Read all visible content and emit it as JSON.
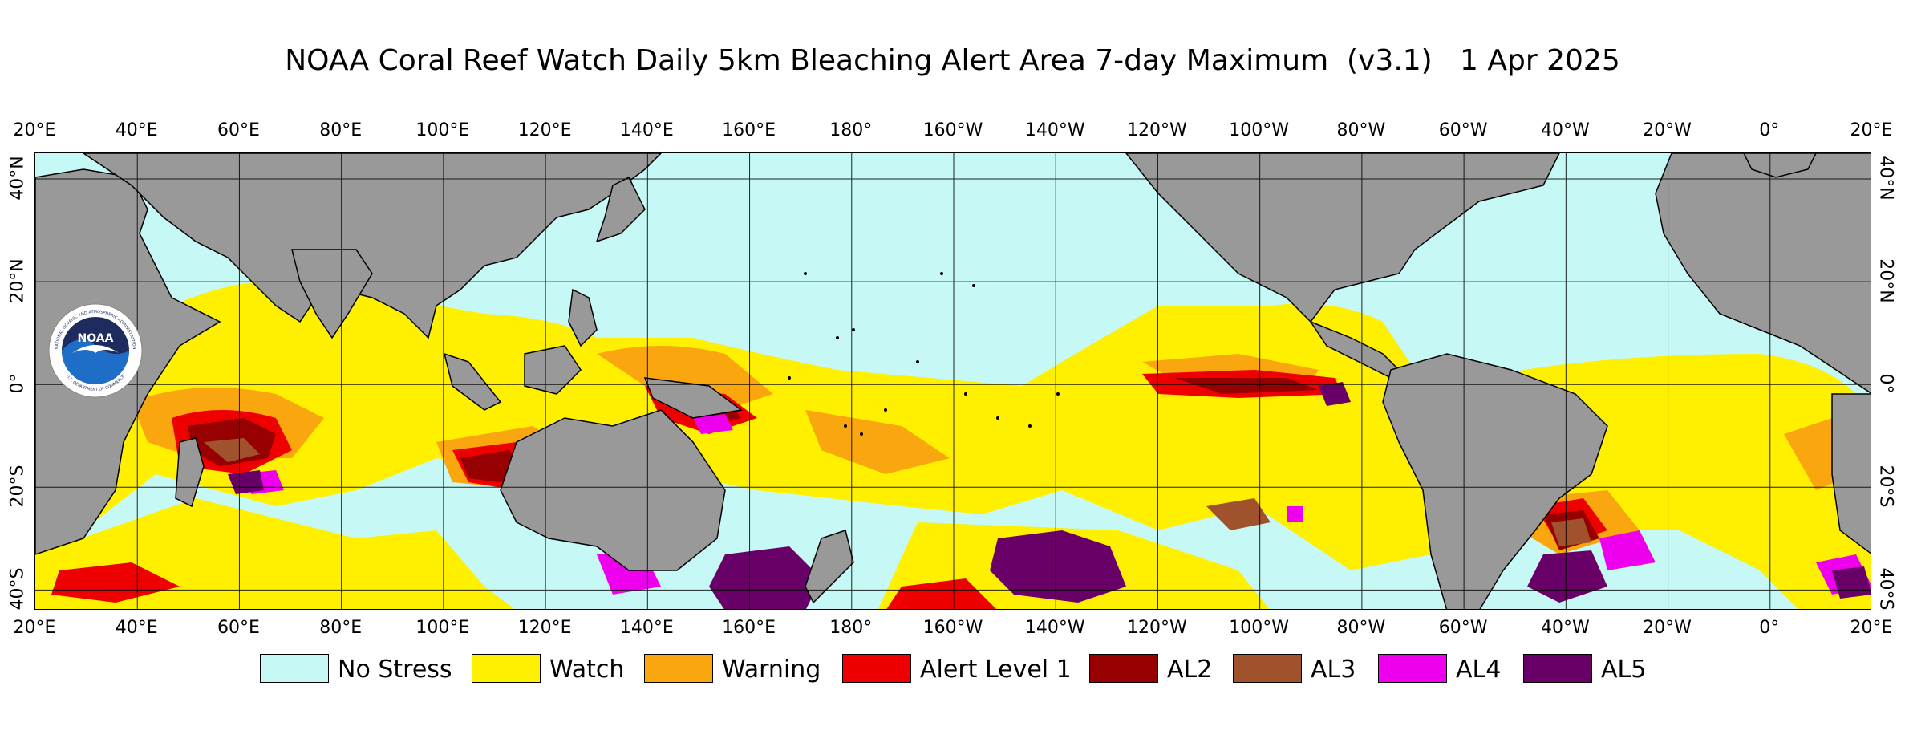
{
  "title": "NOAA Coral Reef Watch Daily 5km Bleaching Alert Area 7-day Maximum  (v3.1)   1 Apr 2025",
  "axes": {
    "lon_labels": [
      "20°E",
      "40°E",
      "60°E",
      "80°E",
      "100°E",
      "120°E",
      "140°E",
      "160°E",
      "180°",
      "160°W",
      "140°W",
      "120°W",
      "100°W",
      "80°W",
      "60°W",
      "40°W",
      "20°W",
      "0°",
      "20°E"
    ],
    "lat_labels": [
      "40°N",
      "20°N",
      "0°",
      "20°S",
      "40°S"
    ],
    "lat_values": [
      40,
      20,
      0,
      -20,
      -40
    ],
    "lat_range": [
      -44,
      45
    ],
    "lon_range_east": [
      20,
      380
    ],
    "grid": true
  },
  "logo": {
    "name": "NOAA",
    "ring_text_top": "NATIONAL OCEANIC AND ATMOSPHERIC ADMINISTRATION",
    "ring_text_bottom": "U.S. DEPARTMENT OF COMMERCE"
  },
  "legend": [
    {
      "label": "No Stress",
      "color": "#c6f8f5"
    },
    {
      "label": "Watch",
      "color": "#fff000"
    },
    {
      "label": "Warning",
      "color": "#f9a60f"
    },
    {
      "label": "Alert Level 1",
      "color": "#ee0000"
    },
    {
      "label": "AL2",
      "color": "#960000"
    },
    {
      "label": "AL3",
      "color": "#a0522d"
    },
    {
      "label": "AL4",
      "color": "#ee00ee"
    },
    {
      "label": "AL5",
      "color": "#680068"
    }
  ],
  "colors": {
    "land": "#999999",
    "ocean_default": "#c6f8f5"
  }
}
